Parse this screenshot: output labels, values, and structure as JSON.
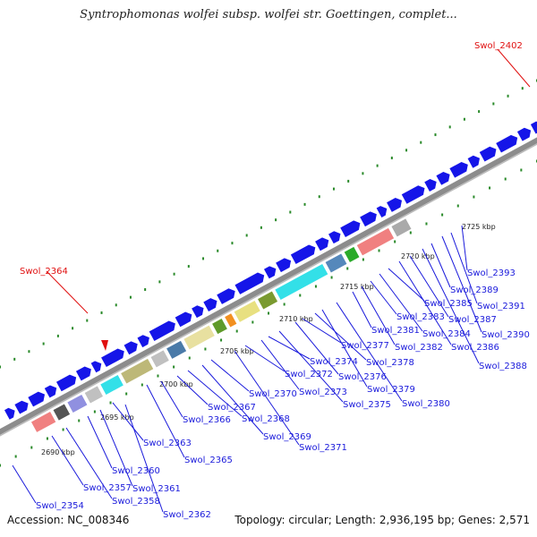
{
  "title": "Syntrophomonas wolfei subsp. wolfei str. Goettingen, complet...",
  "footer": {
    "accession": "Accession: NC_008346",
    "summary": "Topology: circular; Length: 2,936,195 bp; Genes: 2,571"
  },
  "colors": {
    "gene_label": "#1a1adb",
    "highlight_label": "#e01010",
    "forward_gene": "#1515e8",
    "backbone": "#888888",
    "dots": "#2a8a2a"
  },
  "scale_labels": [
    "2690 kbp",
    "2695 kbp",
    "2700 kbp",
    "2705 kbp",
    "2710 kbp",
    "2715 kbp",
    "2720 kbp",
    "2725 kbp"
  ],
  "highlight_genes": [
    "Swol_2364",
    "Swol_2402"
  ],
  "gene_labels": [
    "Swol_2354",
    "Swol_2357",
    "Swol_2358",
    "Swol_2360",
    "Swol_2361",
    "Swol_2362",
    "Swol_2363",
    "Swol_2365",
    "Swol_2366",
    "Swol_2367",
    "Swol_2368",
    "Swol_2369",
    "Swol_2370",
    "Swol_2371",
    "Swol_2372",
    "Swol_2373",
    "Swol_2374",
    "Swol_2375",
    "Swol_2376",
    "Swol_2377",
    "Swol_2378",
    "Swol_2379",
    "Swol_2380",
    "Swol_2381",
    "Swol_2382",
    "Swol_2383",
    "Swol_2384",
    "Swol_2385",
    "Swol_2386",
    "Swol_2387",
    "Swol_2388",
    "Swol_2389",
    "Swol_2390",
    "Swol_2391",
    "Swol_2393"
  ]
}
